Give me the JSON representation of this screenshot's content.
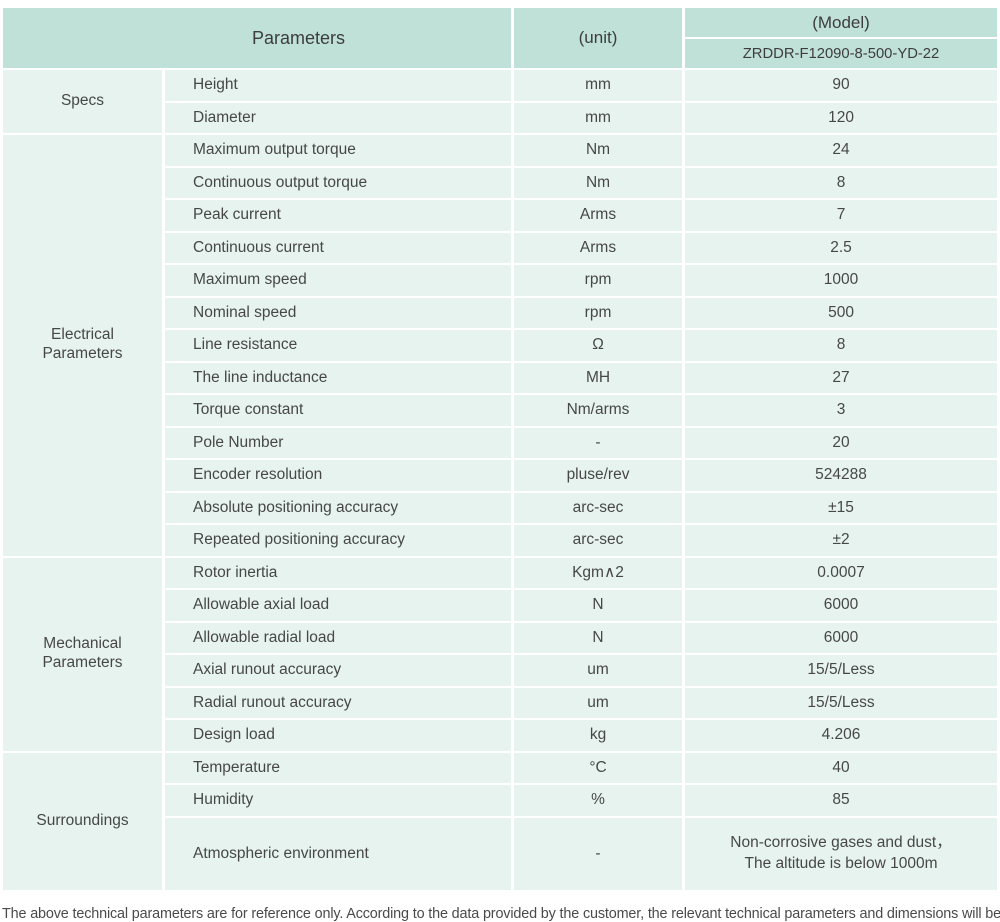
{
  "header": {
    "parameters_label": "Parameters",
    "unit_label": "(unit)",
    "model_label": "(Model)",
    "model_value": "ZRDDR-F12090-8-500-YD-22"
  },
  "sections": [
    {
      "name": "Specs",
      "rows": [
        {
          "param": "Height",
          "unit": "mm",
          "value": "90"
        },
        {
          "param": "Diameter",
          "unit": "mm",
          "value": "120"
        }
      ]
    },
    {
      "name": "Electrical\nParameters",
      "rows": [
        {
          "param": "Maximum output torque",
          "unit": "Nm",
          "value": "24"
        },
        {
          "param": "Continuous output torque",
          "unit": "Nm",
          "value": "8"
        },
        {
          "param": "Peak current",
          "unit": "Arms",
          "value": "7"
        },
        {
          "param": "Continuous current",
          "unit": "Arms",
          "value": "2.5"
        },
        {
          "param": "Maximum speed",
          "unit": "rpm",
          "value": "1000"
        },
        {
          "param": "Nominal speed",
          "unit": "rpm",
          "value": "500"
        },
        {
          "param": "Line resistance",
          "unit": "Ω",
          "value": "8"
        },
        {
          "param": "The line inductance",
          "unit": "MH",
          "value": "27"
        },
        {
          "param": "Torque constant",
          "unit": "Nm/arms",
          "value": "3"
        },
        {
          "param": "Pole Number",
          "unit": "-",
          "value": "20"
        },
        {
          "param": "Encoder resolution",
          "unit": "pluse/rev",
          "value": "524288"
        },
        {
          "param": "Absolute positioning accuracy",
          "unit": "arc-sec",
          "value": "±15"
        },
        {
          "param": "Repeated positioning accuracy",
          "unit": "arc-sec",
          "value": "±2"
        }
      ]
    },
    {
      "name": "Mechanical\nParameters",
      "rows": [
        {
          "param": "Rotor inertia",
          "unit": "Kgm∧2",
          "value": "0.0007"
        },
        {
          "param": "Allowable axial load",
          "unit": "N",
          "value": "6000"
        },
        {
          "param": "Allowable radial load",
          "unit": "N",
          "value": "6000"
        },
        {
          "param": "Axial runout accuracy",
          "unit": "um",
          "value": "15/5/Less"
        },
        {
          "param": "Radial runout accuracy",
          "unit": "um",
          "value": "15/5/Less"
        },
        {
          "param": "Design load",
          "unit": "kg",
          "value": "4.206"
        }
      ]
    },
    {
      "name": "Surroundings",
      "rows": [
        {
          "param": "Temperature",
          "unit": "°C",
          "value": "40"
        },
        {
          "param": "Humidity",
          "unit": "%",
          "value": "85"
        },
        {
          "param": "Atmospheric environment",
          "unit": "-",
          "value": "Non-corrosive gases and dust，\nThe altitude is below 1000m",
          "tall": true
        }
      ]
    }
  ],
  "footer": {
    "note": "The above technical parameters are for reference only. According to the data provided by the customer, the relevant technical parameters and dimensions will be issued."
  },
  "colors": {
    "header_bg": "#c0e1d7",
    "row_bg": "#e7f3ef",
    "text": "#474747",
    "header_text": "#3d3d3d"
  }
}
